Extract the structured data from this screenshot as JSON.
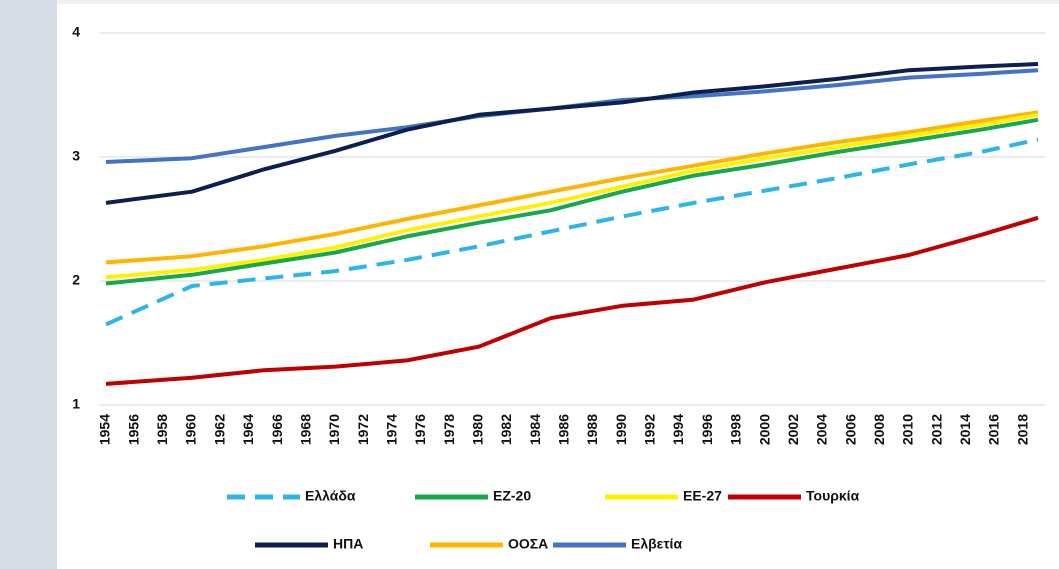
{
  "chart_data": {
    "type": "line",
    "x": [
      1954,
      1960,
      1965,
      1970,
      1975,
      1980,
      1985,
      1990,
      1995,
      2000,
      2005,
      2010,
      2015,
      2019
    ],
    "xlim": [
      1954,
      2019
    ],
    "xticks": [
      1954,
      1956,
      1958,
      1960,
      1962,
      1964,
      1966,
      1968,
      1970,
      1972,
      1974,
      1976,
      1978,
      1980,
      1982,
      1984,
      1986,
      1988,
      1990,
      1992,
      1994,
      1996,
      1998,
      2000,
      2002,
      2004,
      2006,
      2008,
      2010,
      2012,
      2014,
      2016,
      2018
    ],
    "ylim": [
      1,
      4
    ],
    "yticks": [
      1,
      2,
      3,
      4
    ],
    "grid": true,
    "legend": "bottom",
    "series": [
      {
        "name": "Ελλάδα",
        "color": "#2cb5e8",
        "style": "dashed",
        "values": [
          1.65,
          1.96,
          2.02,
          2.08,
          2.17,
          2.28,
          2.4,
          2.52,
          2.63,
          2.73,
          2.83,
          2.94,
          3.04,
          3.14
        ]
      },
      {
        "name": "ΕΖ-20",
        "color": "#17a84b",
        "style": "solid",
        "values": [
          1.98,
          2.05,
          2.14,
          2.23,
          2.36,
          2.47,
          2.57,
          2.72,
          2.85,
          2.94,
          3.04,
          3.13,
          3.22,
          3.3
        ]
      },
      {
        "name": "ΕΕ-27",
        "color": "#fff200",
        "style": "solid",
        "values": [
          2.03,
          2.09,
          2.17,
          2.27,
          2.41,
          2.52,
          2.63,
          2.76,
          2.89,
          2.99,
          3.08,
          3.17,
          3.26,
          3.34
        ]
      },
      {
        "name": "Τουρκία",
        "color": "#c00000",
        "style": "solid",
        "values": [
          1.17,
          1.22,
          1.28,
          1.31,
          1.36,
          1.47,
          1.7,
          1.8,
          1.85,
          1.99,
          2.1,
          2.21,
          2.37,
          2.51
        ]
      },
      {
        "name": "ΗΠΑ",
        "color": "#0c1f4f",
        "style": "solid",
        "values": [
          2.63,
          2.72,
          2.9,
          3.05,
          3.22,
          3.34,
          3.39,
          3.44,
          3.52,
          3.57,
          3.63,
          3.7,
          3.73,
          3.75
        ]
      },
      {
        "name": "ΟΟΣΑ",
        "color": "#ffb400",
        "style": "solid",
        "values": [
          2.15,
          2.2,
          2.28,
          2.38,
          2.5,
          2.61,
          2.72,
          2.83,
          2.93,
          3.03,
          3.12,
          3.2,
          3.29,
          3.36
        ]
      },
      {
        "name": "Ελβετία",
        "color": "#4472c4",
        "style": "solid",
        "values": [
          2.96,
          2.99,
          3.08,
          3.17,
          3.24,
          3.33,
          3.39,
          3.46,
          3.49,
          3.53,
          3.58,
          3.64,
          3.67,
          3.7
        ]
      }
    ]
  }
}
